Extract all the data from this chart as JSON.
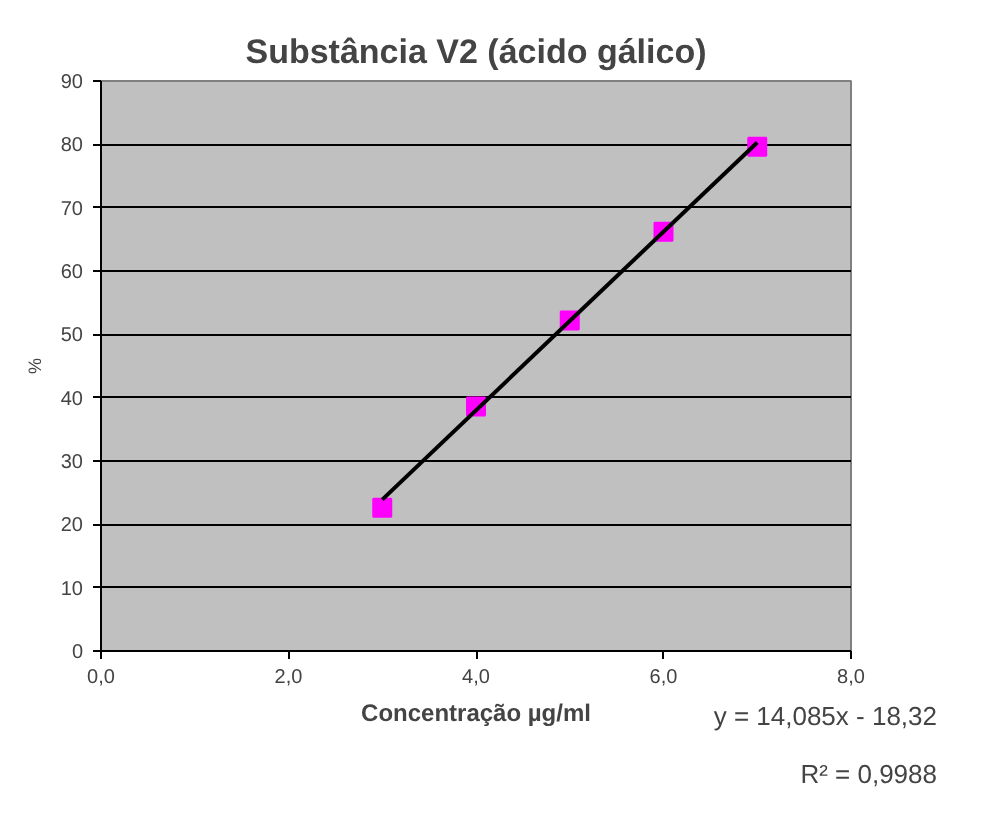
{
  "chart_data": {
    "type": "scatter",
    "title": "Substância V2 (ácido gálico)",
    "xlabel": "Concentração µg/ml",
    "ylabel": "%",
    "x": [
      3,
      4,
      5,
      6,
      7
    ],
    "series": [
      {
        "color": "#ff00ff",
        "values": [
          22.6,
          38.6,
          52.2,
          66.2,
          79.6
        ],
        "marker": "square"
      },
      {
        "type": "line",
        "color": "#000000",
        "x": [
          3,
          7
        ],
        "values": [
          23.9,
          80.3
        ],
        "line_style": "solid"
      }
    ],
    "xlim": [
      0,
      8
    ],
    "xticks": [
      {
        "value": 0,
        "label": "0,0"
      },
      {
        "value": 2,
        "label": "2,0"
      },
      {
        "value": 4,
        "label": "4,0"
      },
      {
        "value": 6,
        "label": "6,0"
      },
      {
        "value": 8,
        "label": "8,0"
      }
    ],
    "ylim": [
      0,
      90
    ],
    "yticks": [
      0,
      10,
      20,
      30,
      40,
      50,
      60,
      70,
      80,
      90
    ],
    "grid": "y",
    "annotations": [
      "y = 14,085x - 18,32",
      "R² = 0,9988"
    ]
  }
}
